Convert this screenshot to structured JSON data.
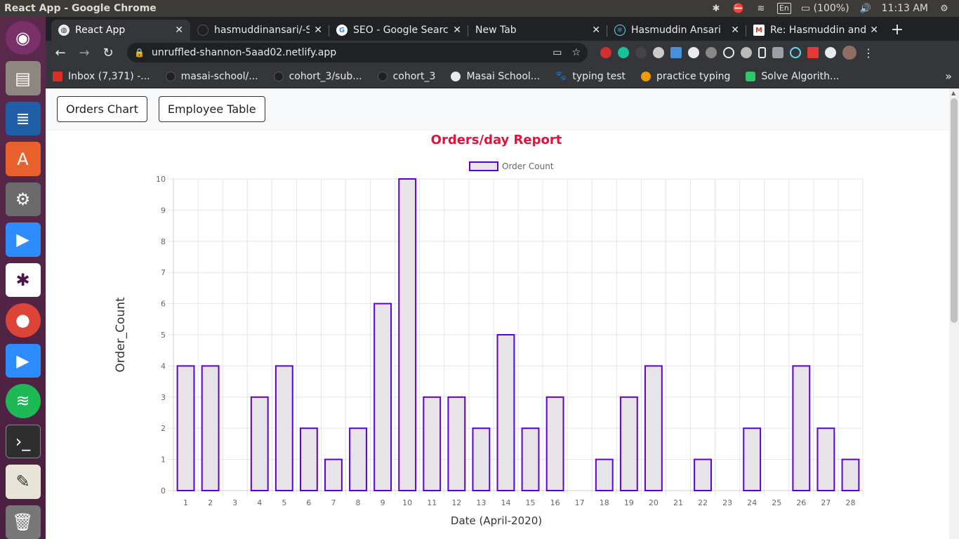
{
  "os": {
    "window_title": "React App - Google Chrome",
    "input_lang": "En",
    "battery": "(100%)",
    "clock": "11:13 AM"
  },
  "browser": {
    "tabs": [
      {
        "label": "React App",
        "icon": "globe-icon",
        "color": "#e8eaed"
      },
      {
        "label": "hasmuddinansari/-S",
        "icon": "github-icon",
        "color": "#202124"
      },
      {
        "label": "SEO - Google Search",
        "icon": "google-icon",
        "color": "#ffffff"
      },
      {
        "label": "New Tab",
        "icon": "none",
        "color": "#35363a"
      },
      {
        "label": "Hasmuddin Ansari",
        "icon": "react-icon",
        "color": "#61dafb"
      },
      {
        "label": "Re: Hasmuddin and",
        "icon": "gmail-icon",
        "color": "#d93025"
      }
    ],
    "url": "unruffled-shannon-5aad02.netlify.app",
    "bookmarks": [
      {
        "label": "Inbox (7,371) -...",
        "color": "#d93025"
      },
      {
        "label": "masai-school/...",
        "color": "#202124"
      },
      {
        "label": "cohort_3/sub...",
        "color": "#202124"
      },
      {
        "label": "cohort_3",
        "color": "#202124"
      },
      {
        "label": "Masai School...",
        "color": "#e8eaed"
      },
      {
        "label": "typing test",
        "color": "#111111"
      },
      {
        "label": "practice typing",
        "color": "#f29900"
      },
      {
        "label": "Solve Algorith...",
        "color": "#2ec866"
      }
    ]
  },
  "nav": {
    "orders_chart": "Orders Chart",
    "employee_table": "Employee Table"
  },
  "chart_data": {
    "type": "bar",
    "title": "Orders/day Report",
    "legend": "Order Count",
    "legend_position": "top",
    "xlabel": "Date (April-2020)",
    "ylabel": "Order_Count",
    "ylim": [
      0,
      10
    ],
    "yticks": [
      0,
      1,
      2,
      3,
      4,
      5,
      6,
      7,
      8,
      9,
      10
    ],
    "grid": true,
    "title_color": "#dc143c",
    "bar_fill": "#e6e4e6",
    "bar_stroke": "#5f00d8",
    "categories": [
      "1",
      "2",
      "3",
      "4",
      "5",
      "6",
      "7",
      "8",
      "9",
      "10",
      "11",
      "12",
      "13",
      "14",
      "15",
      "16",
      "17",
      "18",
      "19",
      "20",
      "21",
      "22",
      "23",
      "24",
      "25",
      "26",
      "27",
      "28"
    ],
    "values": [
      4,
      4,
      0,
      3,
      4,
      2,
      1,
      2,
      6,
      10,
      3,
      3,
      2,
      5,
      2,
      3,
      0,
      1,
      3,
      4,
      0,
      1,
      0,
      2,
      0,
      4,
      2,
      1
    ]
  }
}
